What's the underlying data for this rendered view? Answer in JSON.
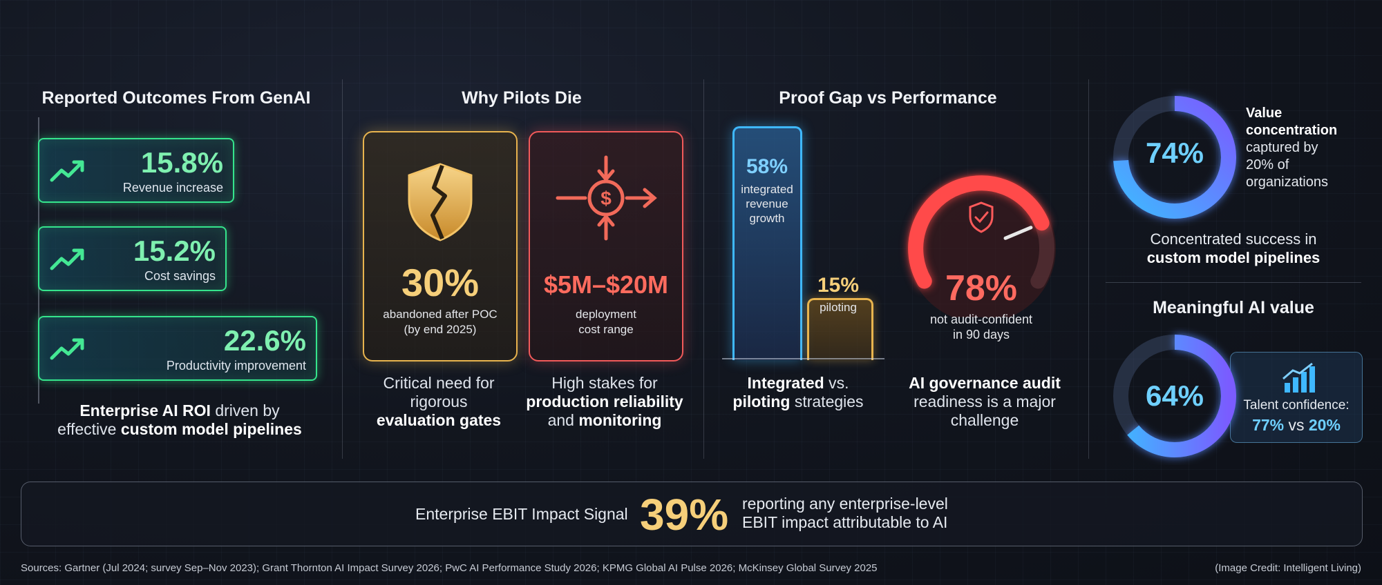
{
  "sections": {
    "outcomes_title": "Reported Outcomes From GenAI",
    "pilots_title": "Why Pilots Die",
    "proof_title": "Proof Gap vs Performance",
    "meaningful_title": "Meaningful AI value"
  },
  "outcomes": [
    {
      "value": "15.8%",
      "label": "Revenue increase"
    },
    {
      "value": "15.2%",
      "label": "Cost savings"
    },
    {
      "value": "22.6%",
      "label": "Productivity improvement"
    }
  ],
  "outcomes_caption": {
    "p1": "Enterprise AI ROI",
    "p2": " driven by",
    "p3": "effective ",
    "p4": "custom model pipelines"
  },
  "pilots": {
    "card1": {
      "value": "30%",
      "line1": "abandoned after POC",
      "line2": "(by end 2025)",
      "color": "#e8b44e"
    },
    "card2": {
      "value": "$5M–$20M",
      "line1": "deployment",
      "line2": "cost range",
      "color": "#f25a5a"
    },
    "caption1": {
      "l1": "Critical need for",
      "l2": "rigorous",
      "l3": "evaluation gates"
    },
    "caption2": {
      "l1": "High stakes for",
      "l2": "production reliability",
      "l3": "and ",
      "l4": "monitoring"
    }
  },
  "proof": {
    "integrated": {
      "value": "58%",
      "line1": "integrated",
      "line2": "revenue",
      "line3": "growth"
    },
    "piloting": {
      "value": "15%",
      "line1": "piloting"
    },
    "gauge": {
      "value": "78%",
      "line1": "not audit-confident",
      "line2": "in 90 days"
    },
    "caption1": {
      "b1": "Integrated",
      "t1": " vs.",
      "b2": "piloting",
      "t2": " strategies"
    },
    "caption2": {
      "b1": "AI governance audit",
      "l2": "readiness is a major",
      "l3": "challenge"
    }
  },
  "value_concentration": {
    "value": "74%",
    "l1": "Value",
    "l2": "concentration",
    "l3": "captured by",
    "l4": "20% of",
    "l5": "organizations",
    "caption1": "Concentrated success in",
    "caption2": "custom model pipelines"
  },
  "meaningful": {
    "value": "64%",
    "talent_label": "Talent confidence:",
    "talent_a": "77%",
    "talent_vs": " vs ",
    "talent_b": "20%"
  },
  "banner": {
    "label": "Enterprise EBIT Impact Signal",
    "value": "39%",
    "desc1": "reporting any enterprise-level",
    "desc2": "EBIT impact attributable to AI"
  },
  "footer": {
    "sources": "Sources: Gartner (Jul 2024; survey Sep–Nov 2023); Grant Thornton AI Impact Survey 2026; PwC AI Performance Study 2026; KPMG Global AI Pulse 2026; McKinsey Global Survey 2025",
    "credit": "(Image Credit: Intelligent Living)"
  },
  "colors": {
    "green": "#35e58c",
    "gold": "#e8b44e",
    "red": "#f25a5a",
    "blue": "#3fb8ff",
    "purple": "#7a5cff"
  },
  "chart_data": [
    {
      "type": "bar",
      "categories": [
        "Revenue increase",
        "Cost savings",
        "Productivity improvement"
      ],
      "values": [
        15.8,
        15.2,
        22.6
      ]
    },
    {
      "type": "bar",
      "categories": [
        "integrated revenue growth",
        "piloting"
      ],
      "values": [
        58,
        15
      ]
    },
    {
      "type": "pie",
      "label": "not audit-confident in 90 days",
      "values": [
        78
      ]
    },
    {
      "type": "pie",
      "label": "Value concentration",
      "values": [
        74
      ]
    },
    {
      "type": "pie",
      "label": "Meaningful AI value",
      "values": [
        64
      ]
    }
  ]
}
